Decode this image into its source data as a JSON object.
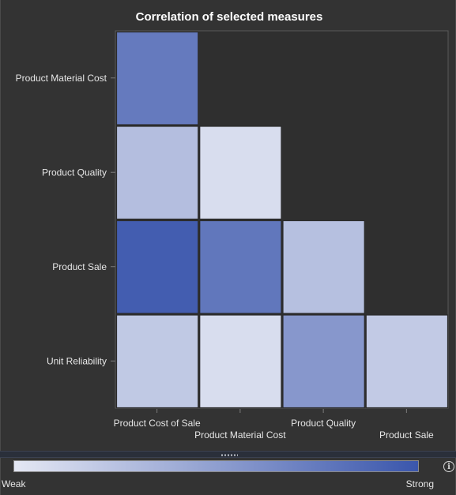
{
  "chart_data": {
    "type": "heatmap",
    "title": "Correlation of selected measures",
    "x_categories": [
      "Product Cost of Sale",
      "Product Material Cost",
      "Product Quality",
      "Product Sale"
    ],
    "y_categories": [
      "Product Material Cost",
      "Product Quality",
      "Product Sale",
      "Unit Reliability"
    ],
    "cells": [
      {
        "row": "Product Material Cost",
        "col": "Product Cost of Sale",
        "strength": 0.75
      },
      {
        "row": "Product Quality",
        "col": "Product Cost of Sale",
        "strength": 0.28
      },
      {
        "row": "Product Quality",
        "col": "Product Material Cost",
        "strength": 0.07
      },
      {
        "row": "Product Sale",
        "col": "Product Cost of Sale",
        "strength": 0.95
      },
      {
        "row": "Product Sale",
        "col": "Product Material Cost",
        "strength": 0.77
      },
      {
        "row": "Product Sale",
        "col": "Product Quality",
        "strength": 0.27
      },
      {
        "row": "Unit Reliability",
        "col": "Product Cost of Sale",
        "strength": 0.21
      },
      {
        "row": "Unit Reliability",
        "col": "Product Material Cost",
        "strength": 0.07
      },
      {
        "row": "Unit Reliability",
        "col": "Product Quality",
        "strength": 0.55
      },
      {
        "row": "Unit Reliability",
        "col": "Product Sale",
        "strength": 0.2
      }
    ],
    "color_scale": {
      "weak": "#e4e7f3",
      "strong": "#3a56ac"
    },
    "empty_color": "#2f2f2f",
    "grid": false
  },
  "legend": {
    "weak_label": "Weak",
    "strong_label": "Strong"
  },
  "colors": {
    "background": "#333333",
    "axis": "#7a7a7a",
    "text": "#e6e6e6"
  },
  "icons": {
    "info": "info-icon",
    "splitter": "resize-handle-icon"
  }
}
